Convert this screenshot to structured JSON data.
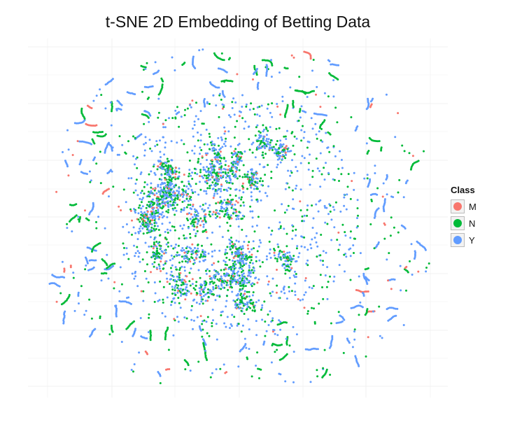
{
  "chart_data": {
    "type": "scatter",
    "title": "t-SNE 2D Embedding of Betting Data",
    "xlabel": "",
    "ylabel": "",
    "grid": true,
    "legend_title": "Class",
    "legend_position": "right",
    "series": [
      {
        "name": "M",
        "color": "#F8766D"
      },
      {
        "name": "N",
        "color": "#00BA38"
      },
      {
        "name": "Y",
        "color": "#619CFF"
      }
    ]
  }
}
